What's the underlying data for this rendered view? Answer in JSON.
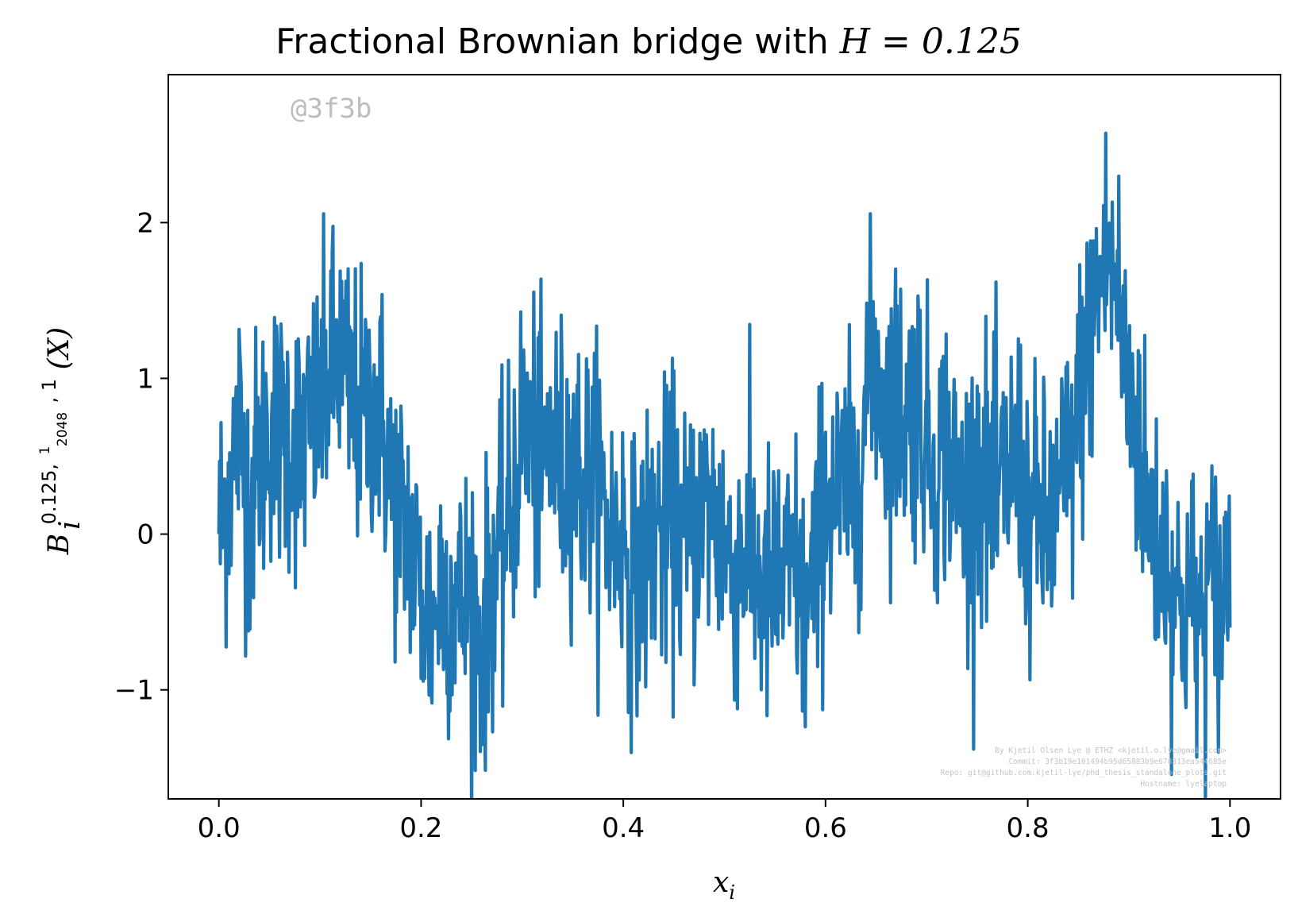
{
  "chart_data": {
    "type": "line",
    "title_prefix": "Fractional Brownian bridge with ",
    "title_math": "H = 0.125",
    "xlabel": "x",
    "xlabel_subscript": "i",
    "ylabel": "B_i^{0.125, 1/2048, 1}(X)",
    "ylabel_base": "B",
    "ylabel_sub": "i",
    "ylabel_sup_a": "0.125,",
    "ylabel_sup_num": "1",
    "ylabel_sup_den": "2048",
    "ylabel_sup_b": ", 1",
    "ylabel_tail": "(X)",
    "xlim": [
      -0.05,
      1.05
    ],
    "ylim": [
      -1.7,
      2.95
    ],
    "xticks": [
      0.0,
      0.2,
      0.4,
      0.6,
      0.8,
      1.0
    ],
    "xtick_labels": [
      "0.0",
      "0.2",
      "0.4",
      "0.6",
      "0.8",
      "1.0"
    ],
    "yticks": [
      -1,
      0,
      1,
      2
    ],
    "ytick_labels": [
      "−1",
      "0",
      "1",
      "2"
    ],
    "grid": false,
    "series": [
      {
        "color": "#1f77b4",
        "x": [
          0.0,
          0.01,
          0.02,
          0.03,
          0.04,
          0.05,
          0.06,
          0.07,
          0.08,
          0.09,
          0.1,
          0.11,
          0.12,
          0.13,
          0.14,
          0.15,
          0.16,
          0.17,
          0.18,
          0.19,
          0.2,
          0.21,
          0.22,
          0.23,
          0.24,
          0.25,
          0.26,
          0.27,
          0.28,
          0.29,
          0.3,
          0.31,
          0.32,
          0.33,
          0.34,
          0.35,
          0.36,
          0.37,
          0.38,
          0.39,
          0.4,
          0.41,
          0.42,
          0.43,
          0.44,
          0.45,
          0.46,
          0.47,
          0.48,
          0.49,
          0.5,
          0.51,
          0.52,
          0.53,
          0.54,
          0.55,
          0.56,
          0.57,
          0.58,
          0.59,
          0.6,
          0.61,
          0.62,
          0.63,
          0.64,
          0.65,
          0.66,
          0.67,
          0.68,
          0.69,
          0.7,
          0.71,
          0.72,
          0.73,
          0.74,
          0.75,
          0.76,
          0.77,
          0.78,
          0.79,
          0.8,
          0.81,
          0.82,
          0.83,
          0.84,
          0.85,
          0.86,
          0.87,
          0.88,
          0.89,
          0.9,
          0.91,
          0.92,
          0.93,
          0.94,
          0.95,
          0.96,
          0.97,
          0.98,
          0.99,
          1.0
        ],
        "y": [
          0.0,
          0.3,
          0.7,
          0.2,
          0.5,
          0.7,
          0.6,
          0.7,
          0.5,
          0.7,
          0.8,
          1.1,
          1.1,
          0.9,
          0.7,
          0.8,
          0.8,
          0.3,
          0.1,
          0.0,
          -0.4,
          -0.6,
          -0.3,
          -0.4,
          -0.5,
          -0.4,
          -0.8,
          -0.3,
          -0.1,
          0.2,
          0.7,
          0.6,
          0.4,
          0.6,
          0.4,
          0.5,
          0.3,
          0.4,
          0.2,
          0.0,
          0.0,
          -0.3,
          -0.2,
          0.1,
          0.0,
          0.1,
          -0.1,
          0.0,
          0.2,
          0.1,
          -0.1,
          -0.2,
          -0.1,
          -0.2,
          -0.4,
          -0.3,
          -0.3,
          -0.2,
          -0.6,
          -0.2,
          0.3,
          0.2,
          0.3,
          0.2,
          0.9,
          1.1,
          0.8,
          0.9,
          0.7,
          0.9,
          0.6,
          0.4,
          0.6,
          0.3,
          0.2,
          0.5,
          0.3,
          0.2,
          0.4,
          0.5,
          0.1,
          0.1,
          0.0,
          0.2,
          0.4,
          0.8,
          1.2,
          1.6,
          1.8,
          1.5,
          0.9,
          0.6,
          0.1,
          -0.1,
          -0.2,
          -0.5,
          -0.4,
          -0.6,
          -0.3,
          -0.5,
          -0.1
        ]
      }
    ]
  },
  "watermark": "@3f3b",
  "credits": [
    "By Kjetil Olsen Lye @ ETHZ <kjetil.o.lye@gmail.com>",
    "Commit: 3f3b19e101494b95d65883b9e678313ea544685e",
    "Repo: git@github.com:kjetil-lye/phd_thesis_standalone_plots.git",
    "Hostname: lyelaptop"
  ]
}
